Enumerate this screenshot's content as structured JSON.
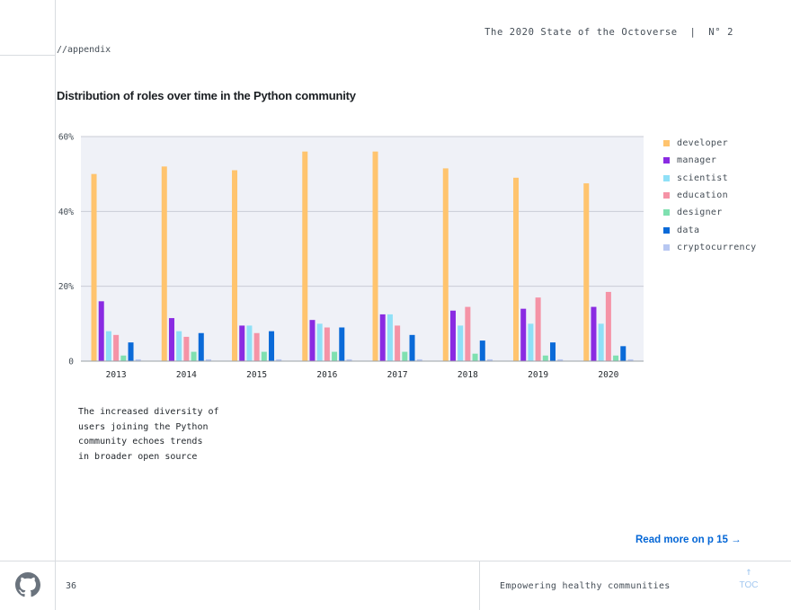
{
  "header": {
    "title": "The 2020 State of the Octoverse  |  N° 2",
    "section": "//appendix"
  },
  "chart_title": "Distribution of roles over time in the Python community",
  "chart_data": {
    "type": "bar",
    "categories": [
      "2013",
      "2014",
      "2015",
      "2016",
      "2017",
      "2018",
      "2019",
      "2020"
    ],
    "series": [
      {
        "name": "developer",
        "color": "#ffc46e",
        "values": [
          50,
          52,
          51,
          56,
          56,
          51.5,
          49,
          47.5
        ]
      },
      {
        "name": "manager",
        "color": "#8a2be2",
        "values": [
          16,
          11.5,
          9.5,
          11,
          12.5,
          13.5,
          14,
          14.5
        ]
      },
      {
        "name": "scientist",
        "color": "#8fe0f7",
        "values": [
          8,
          8,
          9.5,
          10,
          12.5,
          9.5,
          10,
          10
        ]
      },
      {
        "name": "education",
        "color": "#f593a6",
        "values": [
          7,
          6.5,
          7.5,
          9,
          9.5,
          14.5,
          17,
          18.5
        ]
      },
      {
        "name": "designer",
        "color": "#7fe0b0",
        "values": [
          1.5,
          2.5,
          2.5,
          2.5,
          2.5,
          2,
          1.5,
          1.5
        ]
      },
      {
        "name": "data",
        "color": "#0a6ad8",
        "values": [
          5,
          7.5,
          8,
          9,
          7,
          5.5,
          5,
          4
        ]
      },
      {
        "name": "cryptocurrency",
        "color": "#b7c7f2",
        "values": [
          0.5,
          0.5,
          0.5,
          0.5,
          0.5,
          0.5,
          0.5,
          0.5
        ]
      }
    ],
    "ylim": [
      0,
      60
    ],
    "yticks": [
      {
        "value": 0,
        "label": "0"
      },
      {
        "value": 20,
        "label": "20%"
      },
      {
        "value": 40,
        "label": "40%"
      },
      {
        "value": 60,
        "label": "60%"
      }
    ],
    "grid": true,
    "legend_position": "right",
    "background": "#eff1f7"
  },
  "note": "The increased diversity of\nusers joining the Python\ncommunity echoes trends\nin broader open source",
  "read_more": "Read more on p 15 →",
  "footer": {
    "page_number": "36",
    "section": "Empowering healthy communities",
    "toc_arrow": "↑",
    "toc_label": "TOC"
  }
}
